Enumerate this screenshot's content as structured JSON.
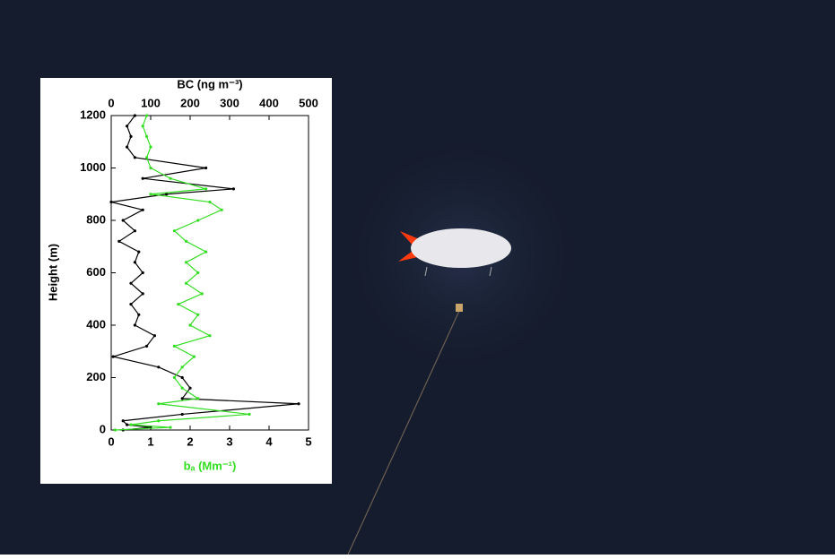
{
  "chart_data": {
    "type": "line",
    "xlabel": "bₐ (Mm⁻¹)",
    "x2label": "BC (ng m⁻³)",
    "ylabel": "Height (m)",
    "xlim": [
      0,
      5
    ],
    "xticks": [
      0,
      1,
      2,
      3,
      4,
      5
    ],
    "x2lim": [
      0,
      500
    ],
    "x2ticks": [
      0,
      100,
      200,
      300,
      400,
      500
    ],
    "ylim": [
      0,
      1200
    ],
    "yticks": [
      0,
      200,
      400,
      600,
      800,
      1000,
      1200
    ],
    "y": [
      0,
      10,
      20,
      35,
      60,
      100,
      120,
      160,
      200,
      240,
      280,
      320,
      360,
      400,
      440,
      480,
      520,
      560,
      600,
      640,
      680,
      720,
      760,
      800,
      840,
      870,
      900,
      920,
      960,
      1000,
      1040,
      1080,
      1120,
      1160,
      1200
    ],
    "series": [
      {
        "color": "#000000",
        "axis": "x2",
        "values": [
          30,
          100,
          40,
          30,
          180,
          475,
          180,
          200,
          180,
          120,
          5,
          90,
          110,
          60,
          70,
          50,
          80,
          50,
          80,
          60,
          70,
          20,
          60,
          30,
          80,
          0,
          140,
          310,
          80,
          240,
          60,
          40,
          50,
          40,
          60
        ]
      },
      {
        "color": "#33dd22",
        "axis": "x",
        "values": [
          0.1,
          1.5,
          0.5,
          1.2,
          3.5,
          1.2,
          2.2,
          1.8,
          1.6,
          1.8,
          2.1,
          1.6,
          2.5,
          2.0,
          2.2,
          1.7,
          2.3,
          1.9,
          2.2,
          1.9,
          2.4,
          1.9,
          1.6,
          2.2,
          2.8,
          2.5,
          1.0,
          2.4,
          1.5,
          1.0,
          0.9,
          1.0,
          0.9,
          0.8,
          0.9
        ]
      }
    ]
  }
}
